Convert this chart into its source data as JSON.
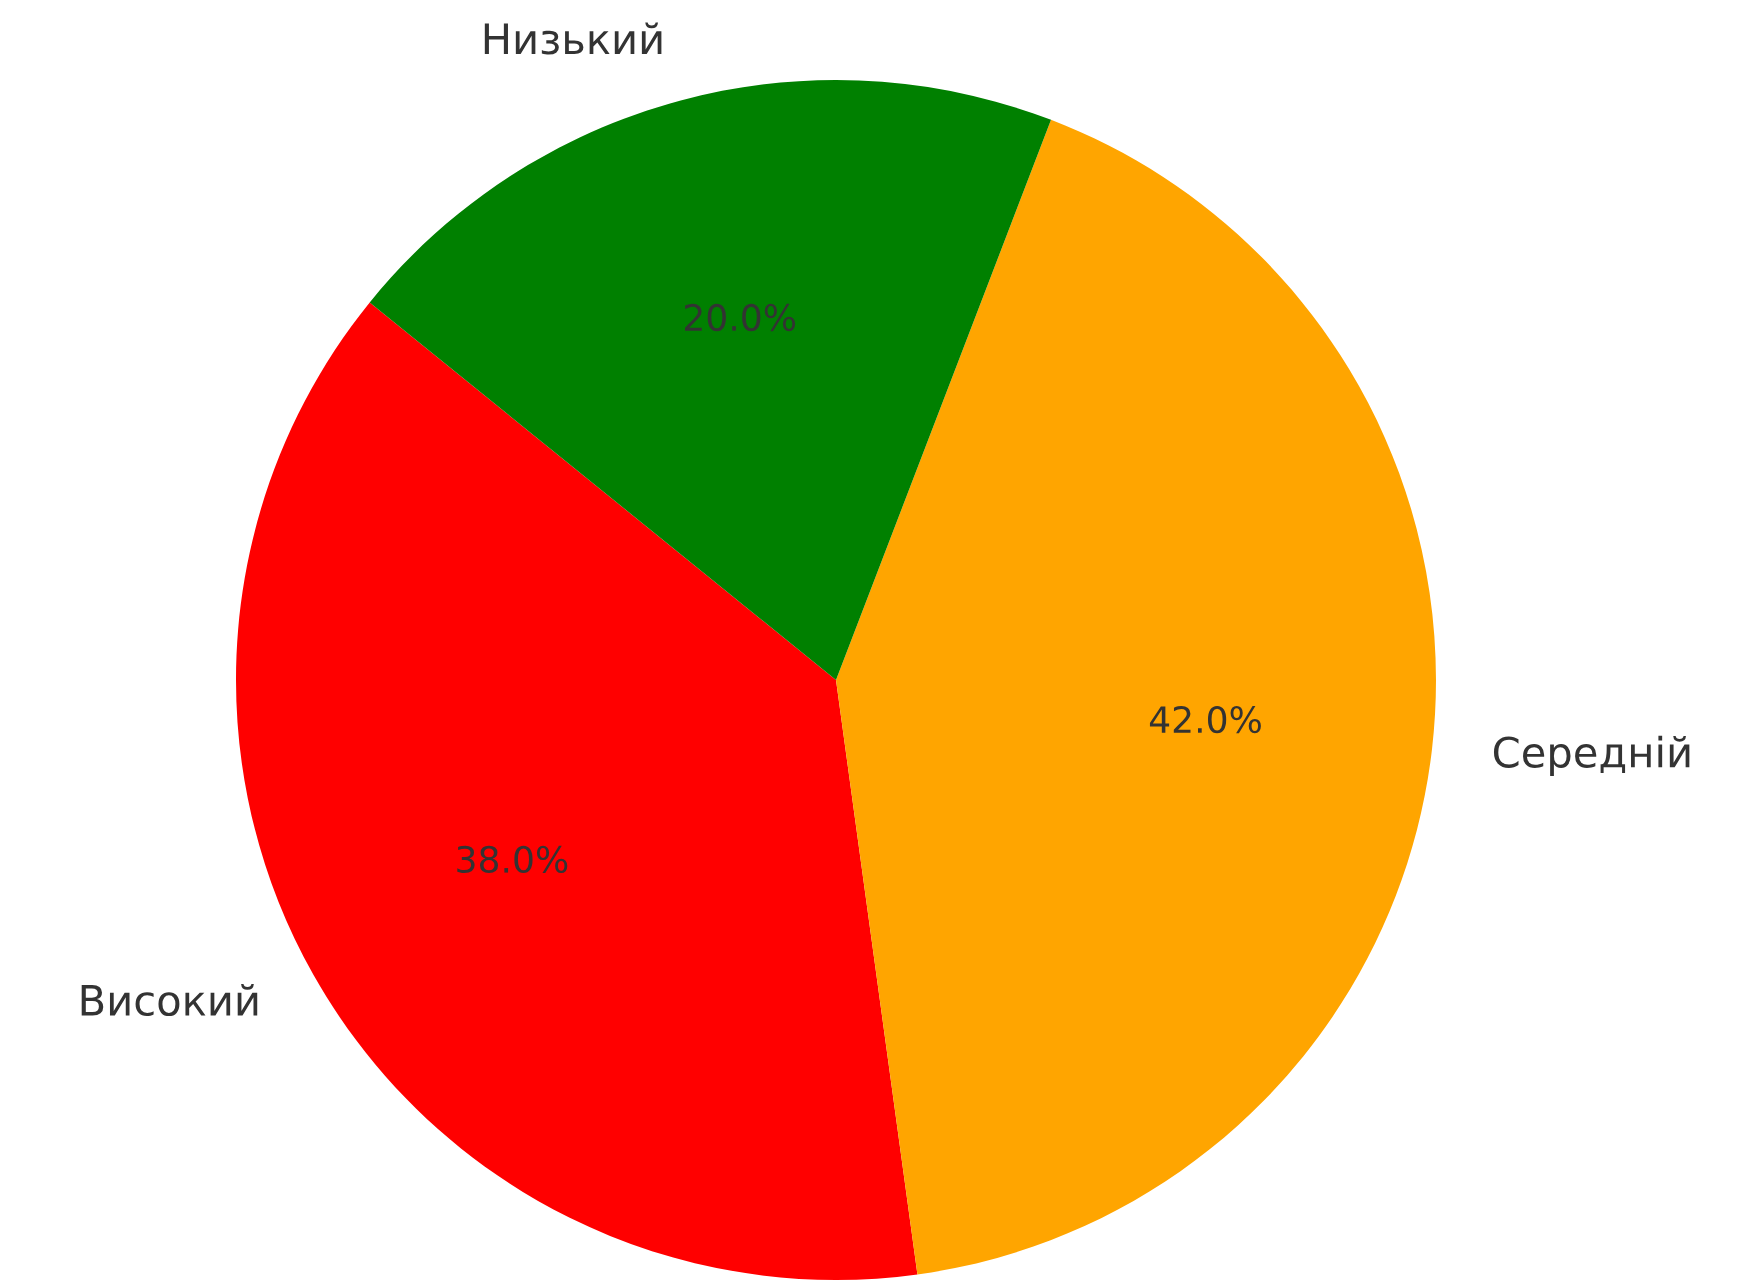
{
  "chart_data": {
    "type": "pie",
    "categories": [
      "Високий",
      "Середній",
      "Низький"
    ],
    "values": [
      38,
      42,
      20
    ],
    "colors": [
      "#ff0000",
      "#ffa500",
      "#008000"
    ],
    "value_labels": [
      "38.0%",
      "42.0%",
      "20.0%"
    ]
  }
}
